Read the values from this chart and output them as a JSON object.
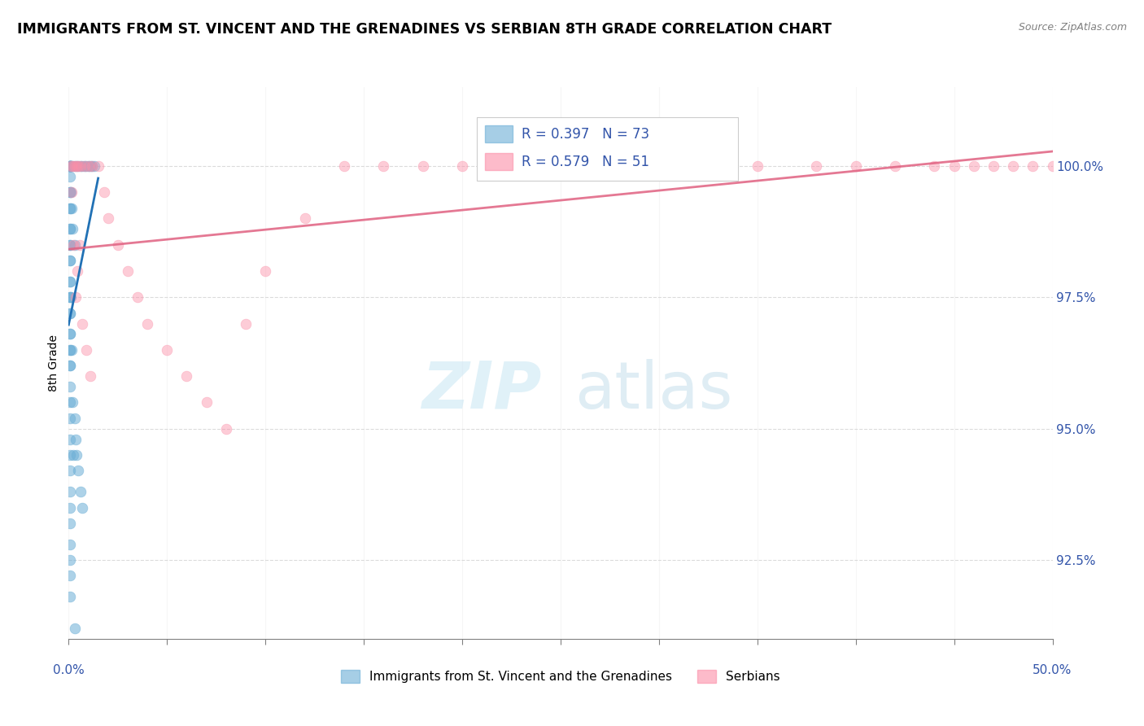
{
  "title": "IMMIGRANTS FROM ST. VINCENT AND THE GRENADINES VS SERBIAN 8TH GRADE CORRELATION CHART",
  "source": "Source: ZipAtlas.com",
  "ylabel": "8th Grade",
  "xlim": [
    0.0,
    50.0
  ],
  "ylim": [
    91.0,
    101.5
  ],
  "blue_R": 0.397,
  "blue_N": 73,
  "pink_R": 0.579,
  "pink_N": 51,
  "blue_color": "#6baed6",
  "pink_color": "#fc8fa8",
  "blue_line_color": "#2171b5",
  "pink_line_color": "#e06080",
  "legend_label_blue": "Immigrants from St. Vincent and the Grenadines",
  "legend_label_pink": "Serbians"
}
